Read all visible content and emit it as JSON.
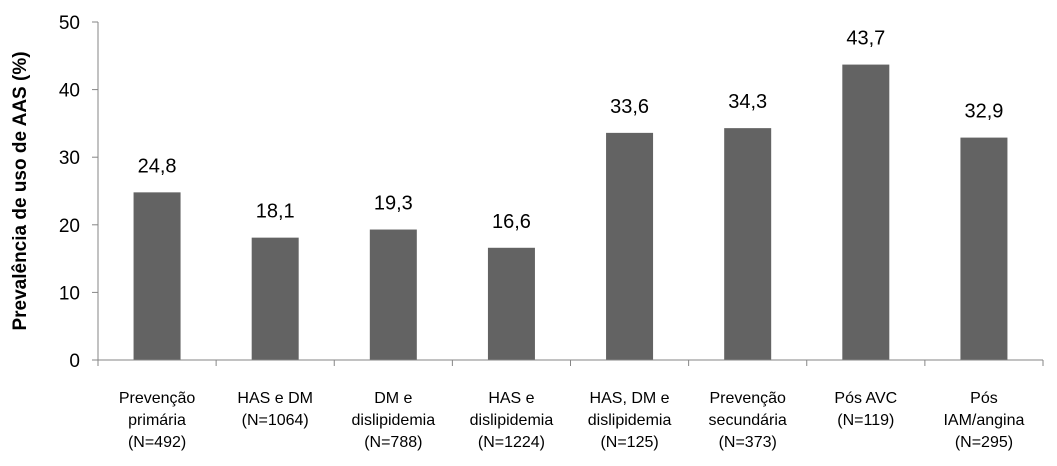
{
  "chart_data": {
    "type": "bar",
    "ylabel": "Prevalência de uso de AAS (%)",
    "xlabel": "",
    "ylim": [
      0,
      50
    ],
    "yticks": [
      0,
      10,
      20,
      30,
      40,
      50
    ],
    "grid": false,
    "legend": "none",
    "bar_color": "#636363",
    "axis_color": "#868686",
    "categories": [
      [
        "Prevenção",
        "primária",
        "(N=492)"
      ],
      [
        "HAS e DM",
        "(N=1064)"
      ],
      [
        "DM e",
        "dislipidemia",
        "(N=788)"
      ],
      [
        "HAS e",
        "dislipidemia",
        "(N=1224)"
      ],
      [
        "HAS, DM e",
        "dislipidemia",
        "(N=125)"
      ],
      [
        "Prevenção",
        "secundária",
        "(N=373)"
      ],
      [
        "Pós AVC",
        "(N=119)"
      ],
      [
        "Pós",
        "IAM/angina",
        "(N=295)"
      ]
    ],
    "values": [
      24.8,
      18.1,
      19.3,
      16.6,
      33.6,
      34.3,
      43.7,
      32.9
    ],
    "value_labels": [
      "24,8",
      "18,1",
      "19,3",
      "16,6",
      "33,6",
      "34,3",
      "43,7",
      "32,9"
    ]
  }
}
